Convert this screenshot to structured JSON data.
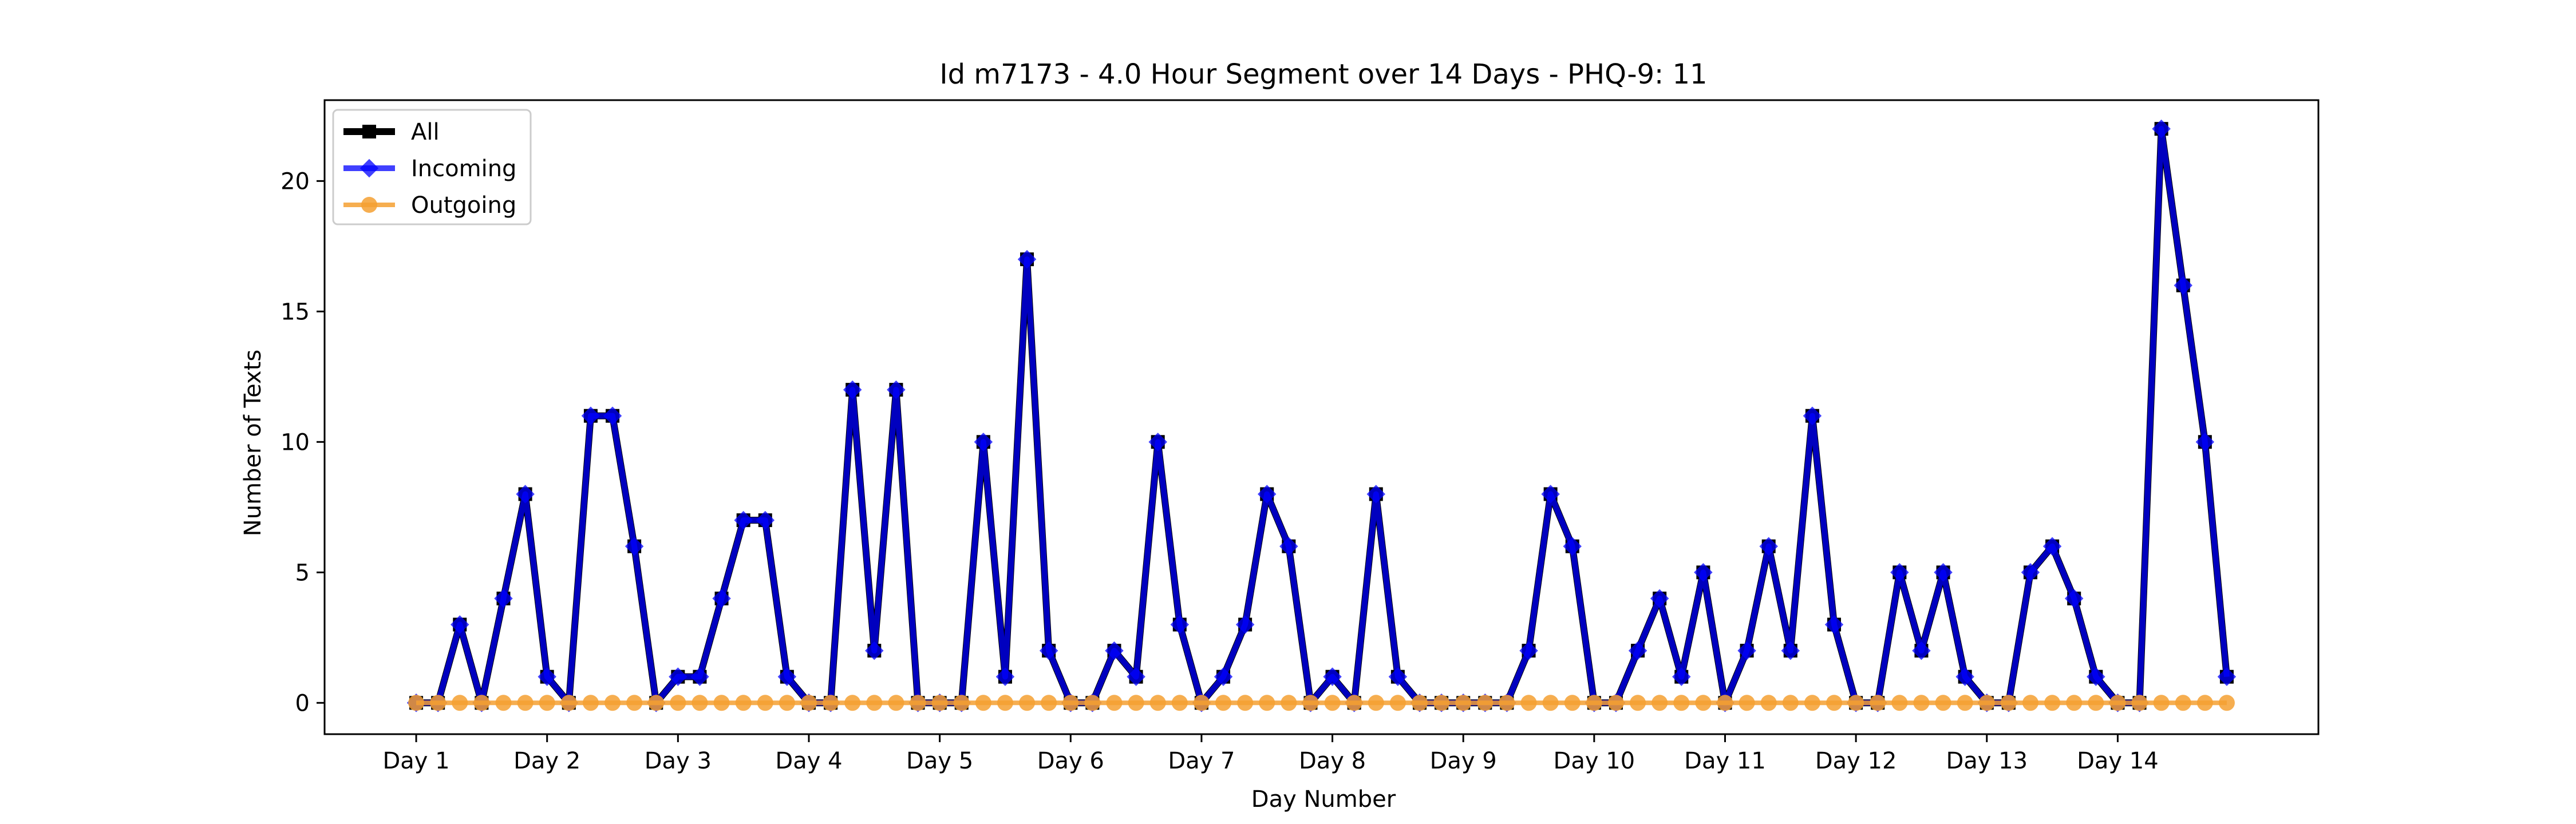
{
  "chart_data": {
    "type": "line",
    "title": "Id m7173 - 4.0 Hour Segment over 14 Days - PHQ-9: 11",
    "xlabel": "Day Number",
    "ylabel": "Number of Texts",
    "ylim": [
      -1.2,
      23.1
    ],
    "yticks": [
      0,
      5,
      10,
      15,
      20
    ],
    "xticks": {
      "positions": [
        0,
        6,
        12,
        18,
        24,
        30,
        36,
        42,
        48,
        54,
        60,
        66,
        72,
        78
      ],
      "labels": [
        "Day 1",
        "Day 2",
        "Day 3",
        "Day 4",
        "Day 5",
        "Day 6",
        "Day 7",
        "Day 8",
        "Day 9",
        "Day 10",
        "Day 11",
        "Day 12",
        "Day 13",
        "Day 14"
      ]
    },
    "xlim": [
      -4.2,
      87.2
    ],
    "grid": false,
    "legend_position": "top-left",
    "series": [
      {
        "name": "All",
        "color": "#000000",
        "marker": "square",
        "values": [
          0,
          0,
          3,
          0,
          4,
          8,
          1,
          0,
          11,
          11,
          6,
          0,
          1,
          1,
          4,
          7,
          7,
          1,
          0,
          0,
          12,
          2,
          12,
          0,
          0,
          0,
          10,
          1,
          17,
          2,
          0,
          0,
          2,
          1,
          10,
          3,
          0,
          1,
          3,
          8,
          6,
          0,
          1,
          0,
          8,
          1,
          0,
          0,
          0,
          0,
          0,
          2,
          8,
          6,
          0,
          0,
          2,
          4,
          1,
          5,
          0,
          2,
          6,
          2,
          11,
          3,
          0,
          0,
          5,
          2,
          5,
          1,
          0,
          0,
          5,
          6,
          4,
          1,
          0,
          0,
          22,
          16,
          10,
          1
        ]
      },
      {
        "name": "Incoming",
        "color": "#0000ff",
        "marker": "diamond",
        "values": [
          0,
          0,
          3,
          0,
          4,
          8,
          1,
          0,
          11,
          11,
          6,
          0,
          1,
          1,
          4,
          7,
          7,
          1,
          0,
          0,
          12,
          2,
          12,
          0,
          0,
          0,
          10,
          1,
          17,
          2,
          0,
          0,
          2,
          1,
          10,
          3,
          0,
          1,
          3,
          8,
          6,
          0,
          1,
          0,
          8,
          1,
          0,
          0,
          0,
          0,
          0,
          2,
          8,
          6,
          0,
          0,
          2,
          4,
          1,
          5,
          0,
          2,
          6,
          2,
          11,
          3,
          0,
          0,
          5,
          2,
          5,
          1,
          0,
          0,
          5,
          6,
          4,
          1,
          0,
          0,
          22,
          16,
          10,
          1
        ]
      },
      {
        "name": "Outgoing",
        "color": "#f5a031",
        "marker": "circle",
        "values": [
          0,
          0,
          0,
          0,
          0,
          0,
          0,
          0,
          0,
          0,
          0,
          0,
          0,
          0,
          0,
          0,
          0,
          0,
          0,
          0,
          0,
          0,
          0,
          0,
          0,
          0,
          0,
          0,
          0,
          0,
          0,
          0,
          0,
          0,
          0,
          0,
          0,
          0,
          0,
          0,
          0,
          0,
          0,
          0,
          0,
          0,
          0,
          0,
          0,
          0,
          0,
          0,
          0,
          0,
          0,
          0,
          0,
          0,
          0,
          0,
          0,
          0,
          0,
          0,
          0,
          0,
          0,
          0,
          0,
          0,
          0,
          0,
          0,
          0,
          0,
          0,
          0,
          0,
          0,
          0,
          0,
          0,
          0,
          0
        ]
      }
    ]
  }
}
